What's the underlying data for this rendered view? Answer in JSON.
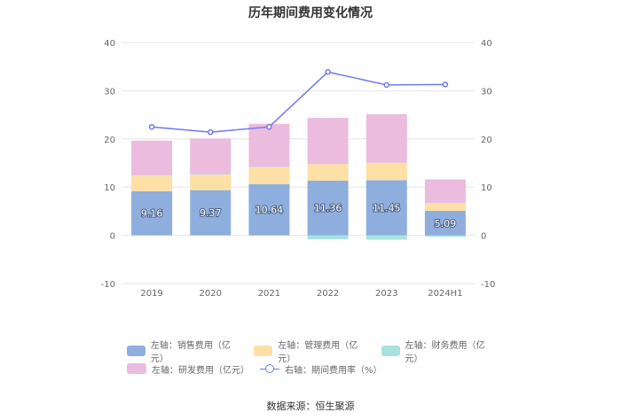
{
  "chart_data": {
    "type": "bar",
    "title": "历年期间费用变化情况",
    "categories": [
      "2019",
      "2020",
      "2021",
      "2022",
      "2023",
      "2024H1"
    ],
    "left_axis": {
      "ylim": [
        -10,
        40
      ],
      "ticks": [
        "-10",
        "0",
        "10",
        "20",
        "30",
        "40"
      ]
    },
    "right_axis": {
      "ylim": [
        -10,
        40
      ],
      "ticks": [
        "-10",
        "0",
        "10",
        "20",
        "30",
        "40"
      ]
    },
    "grid": true,
    "legend_position": "bottom",
    "series": [
      {
        "name": "左轴：销售费用（亿元）",
        "type": "stacked-bar",
        "color": "#8eaedd",
        "values": [
          9.16,
          9.37,
          10.64,
          11.36,
          11.45,
          5.09
        ],
        "labels": [
          "9.16",
          "9.37",
          "10.64",
          "11.36",
          "11.45",
          "5.09"
        ]
      },
      {
        "name": "左轴：管理费用（亿元）",
        "type": "stacked-bar",
        "color": "#fde0a6",
        "values": [
          3.2,
          3.2,
          3.5,
          3.4,
          3.6,
          1.6
        ]
      },
      {
        "name": "左轴：财务费用（亿元）",
        "type": "stacked-bar",
        "color": "#a8e2e0",
        "values": [
          0.1,
          0.1,
          0.1,
          -0.8,
          -0.9,
          -0.3
        ]
      },
      {
        "name": "左轴：研发费用（亿元）",
        "type": "stacked-bar",
        "color": "#ebbcdd",
        "values": [
          7.2,
          7.4,
          8.9,
          9.6,
          10.1,
          4.9
        ]
      },
      {
        "name": "右轴：期间费用率（%）",
        "type": "line",
        "color": "#6e79ee",
        "values": [
          22.5,
          21.4,
          22.5,
          33.9,
          31.2,
          31.3
        ]
      }
    ]
  },
  "legend": {
    "rows": [
      [
        {
          "label": "左轴：销售费用（亿元）",
          "color": "#8eaedd",
          "kind": "bar"
        },
        {
          "label": "左轴：管理费用（亿元）",
          "color": "#fde0a6",
          "kind": "bar"
        },
        {
          "label": "左轴：财务费用（亿元）",
          "color": "#a8e2e0",
          "kind": "bar"
        }
      ],
      [
        {
          "label": "左轴：研发费用（亿元）",
          "color": "#ebbcdd",
          "kind": "bar"
        },
        {
          "label": "右轴：期间费用率（%）",
          "color": "#6e79ee",
          "kind": "line"
        }
      ]
    ]
  },
  "source": "数据来源：恒生聚源"
}
